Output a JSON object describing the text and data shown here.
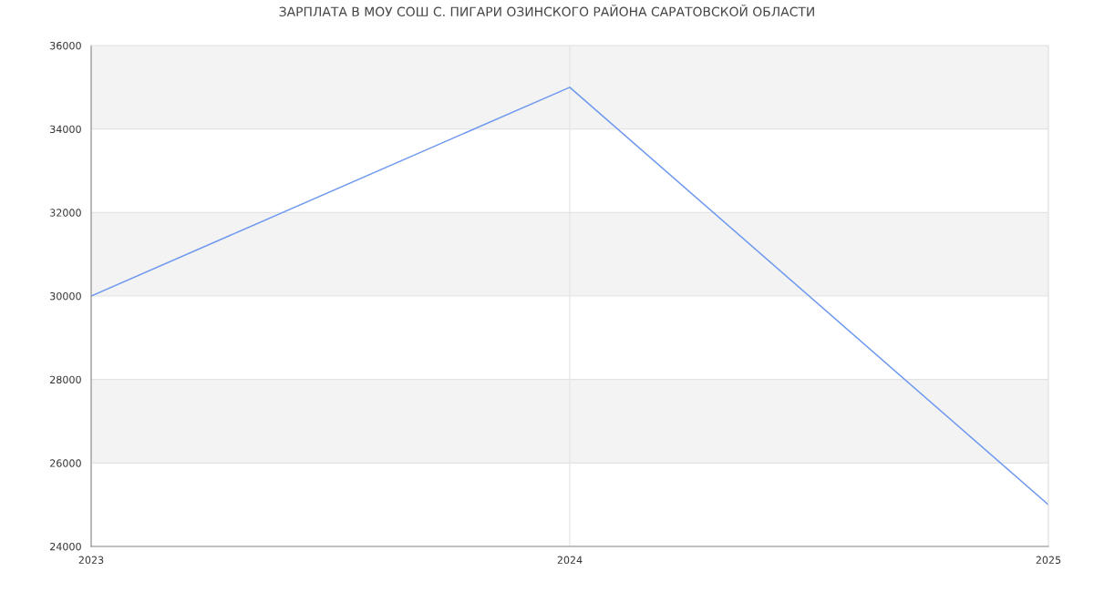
{
  "chart_data": {
    "type": "line",
    "title": "ЗАРПЛАТА В МОУ СОШ С. ПИГАРИ ОЗИНСКОГО РАЙОНА САРАТОВСКОЙ ОБЛАСТИ",
    "x": [
      2023,
      2024,
      2025
    ],
    "series": [
      {
        "color": "#6f99ee",
        "values": [
          30000,
          35000,
          25000
        ]
      }
    ],
    "xlim": [
      2023,
      2025
    ],
    "xticks": [
      2023,
      2024,
      2025
    ],
    "ylim": [
      24000,
      36000
    ],
    "yticks": [
      24000,
      26000,
      28000,
      30000,
      32000,
      34000,
      36000
    ],
    "bands": [
      {
        "axis": "y",
        "from": 26000,
        "to": 28000,
        "color": "#f3f3f3"
      },
      {
        "axis": "y",
        "from": 30000,
        "to": 32000,
        "color": "#f3f3f3"
      },
      {
        "axis": "y",
        "from": 34000,
        "to": 36000,
        "color": "#f3f3f3"
      }
    ],
    "grid": true,
    "marker": "none",
    "line_style": "solid"
  }
}
